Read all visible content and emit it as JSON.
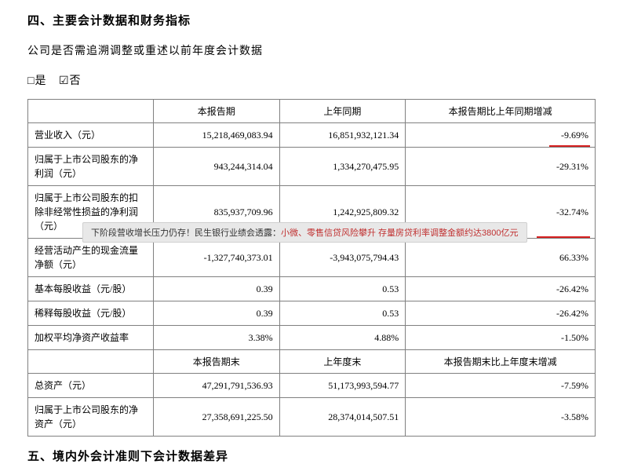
{
  "section4": {
    "title": "四、主要会计数据和财务指标",
    "subtitle": "公司是否需追溯调整或重述以前年度会计数据",
    "checkbox_yes": "□是",
    "checkbox_no": "☑否"
  },
  "table": {
    "header1": {
      "col1": "",
      "col2": "本报告期",
      "col3": "上年同期",
      "col4": "本报告期比上年同期增减"
    },
    "rows1": [
      {
        "label": "营业收入（元）",
        "c1": "15,218,469,083.94",
        "c2": "16,851,932,121.34",
        "c3": "-9.69%",
        "underline": true,
        "uw": 52
      },
      {
        "label": "归属于上市公司股东的净利润（元）",
        "c1": "943,244,314.04",
        "c2": "1,334,270,475.95",
        "c3": "-29.31%"
      },
      {
        "label": "归属于上市公司股东的扣除非经常性损益的净利润（元）",
        "c1": "835,937,709.96",
        "c2": "1,242,925,809.32",
        "c3": "-32.74%",
        "underline": true,
        "uw": 68
      },
      {
        "label": "经营活动产生的现金流量净额（元）",
        "c1": "-1,327,740,373.01",
        "c2": "-3,943,075,794.43",
        "c3": "66.33%"
      },
      {
        "label": "基本每股收益（元/股）",
        "c1": "0.39",
        "c2": "0.53",
        "c3": "-26.42%"
      },
      {
        "label": "稀释每股收益（元/股）",
        "c1": "0.39",
        "c2": "0.53",
        "c3": "-26.42%"
      },
      {
        "label": "加权平均净资产收益率",
        "c1": "3.38%",
        "c2": "4.88%",
        "c3": "-1.50%"
      }
    ],
    "header2": {
      "col1": "",
      "col2": "本报告期末",
      "col3": "上年度末",
      "col4": "本报告期末比上年度末增减"
    },
    "rows2": [
      {
        "label": "总资产（元）",
        "c1": "47,291,791,536.93",
        "c2": "51,173,993,594.77",
        "c3": "-7.59%"
      },
      {
        "label": "归属于上市公司股东的净资产（元）",
        "c1": "27,358,691,225.50",
        "c2": "28,374,014,507.51",
        "c3": "-3.58%"
      }
    ]
  },
  "section5": {
    "title": "五、境内外会计准则下会计数据差异"
  },
  "banner": {
    "text1": "下阶段营收增长压力仍存！民生银行业绩会透露：",
    "text2": "小微、零售信贷风险攀升 存量房贷利率调整金额约达3800亿元"
  },
  "colors": {
    "border": "#808080",
    "underline": "#d62020",
    "banner_bg": "#e8e8e8",
    "banner_red": "#c03030"
  },
  "column_widths": {
    "label": "160px",
    "data": "auto"
  }
}
